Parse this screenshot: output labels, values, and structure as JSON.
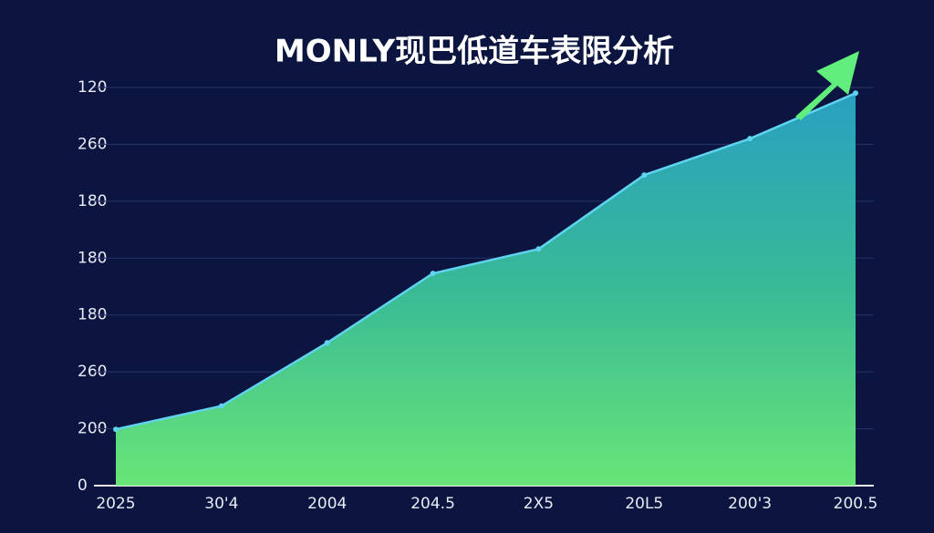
{
  "chart_data": {
    "type": "area",
    "title": "MONLY现巴低道车表限分析",
    "categories": [
      "2025",
      "30'4",
      "2004",
      "204.5",
      "2Ⅹ5",
      "20L5",
      "200'3",
      "200.5"
    ],
    "series": [
      {
        "color": "#5fd3f0",
        "values": [
          0.99,
          1.4,
          2.51,
          3.73,
          4.16,
          5.46,
          6.1,
          6.9
        ]
      }
    ],
    "ylim": [
      0,
      7
    ],
    "yticks": [
      {
        "value": 0,
        "label": "0"
      },
      {
        "value": 1,
        "label": "200"
      },
      {
        "value": 2,
        "label": "260"
      },
      {
        "value": 3,
        "label": "180"
      },
      {
        "value": 4,
        "label": "180"
      },
      {
        "value": 5,
        "label": "180"
      },
      {
        "value": 6,
        "label": "260"
      },
      {
        "value": 7,
        "label": "120"
      }
    ],
    "grid": true
  }
}
